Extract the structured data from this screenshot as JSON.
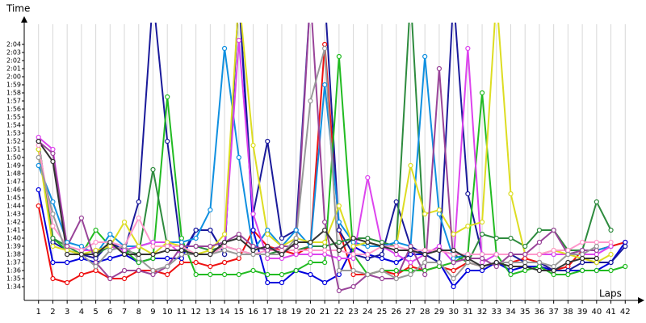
{
  "chart_data": {
    "type": "line",
    "y_label": "Time",
    "x_label": "Laps",
    "x": [
      1,
      2,
      3,
      4,
      5,
      6,
      7,
      8,
      9,
      10,
      11,
      12,
      13,
      14,
      15,
      16,
      17,
      18,
      19,
      20,
      21,
      22,
      23,
      24,
      25,
      26,
      27,
      28,
      29,
      30,
      31,
      32,
      33,
      34,
      35,
      36,
      37,
      38,
      39,
      40,
      41,
      42
    ],
    "xlim": [
      0,
      43
    ],
    "xticks": [
      1,
      2,
      3,
      4,
      5,
      6,
      7,
      8,
      9,
      10,
      11,
      12,
      13,
      14,
      15,
      16,
      17,
      18,
      19,
      20,
      21,
      22,
      23,
      24,
      25,
      26,
      27,
      28,
      29,
      30,
      31,
      32,
      33,
      34,
      35,
      36,
      37,
      38,
      39,
      40,
      41,
      42
    ],
    "ylim": [
      92.3,
      126.5
    ],
    "yticks": [
      {
        "value": 94,
        "label": "1:34"
      },
      {
        "value": 95,
        "label": "1:35"
      },
      {
        "value": 96,
        "label": "1:36"
      },
      {
        "value": 97,
        "label": "1:37"
      },
      {
        "value": 98,
        "label": "1:38"
      },
      {
        "value": 99,
        "label": "1:39"
      },
      {
        "value": 100,
        "label": "1:40"
      },
      {
        "value": 101,
        "label": "1:41"
      },
      {
        "value": 102,
        "label": "1:42"
      },
      {
        "value": 103,
        "label": "1:43"
      },
      {
        "value": 104,
        "label": "1:44"
      },
      {
        "value": 105,
        "label": "1:45"
      },
      {
        "value": 106,
        "label": "1:46"
      },
      {
        "value": 107,
        "label": "1:47"
      },
      {
        "value": 108,
        "label": "1:48"
      },
      {
        "value": 109,
        "label": "1:49"
      },
      {
        "value": 110,
        "label": "1:50"
      },
      {
        "value": 111,
        "label": "1:51"
      },
      {
        "value": 112,
        "label": "1:52"
      },
      {
        "value": 113,
        "label": "1:53"
      },
      {
        "value": 114,
        "label": "1:54"
      },
      {
        "value": 115,
        "label": "1:55"
      },
      {
        "value": 116,
        "label": "1:56"
      },
      {
        "value": 117,
        "label": "1:57"
      },
      {
        "value": 118,
        "label": "1:58"
      },
      {
        "value": 119,
        "label": "1:59"
      },
      {
        "value": 120,
        "label": "2:00"
      },
      {
        "value": 121,
        "label": "2:01"
      },
      {
        "value": 122,
        "label": "2:02"
      },
      {
        "value": 123,
        "label": "2:03"
      },
      {
        "value": 124,
        "label": "2:04"
      }
    ],
    "grid": true,
    "series": [
      {
        "color": "#ee1111",
        "values": [
          104,
          95,
          94.5,
          95.5,
          96,
          95,
          95,
          96,
          96,
          95.5,
          97,
          97,
          96.5,
          97,
          97.5,
          101,
          99,
          98.5,
          98,
          99,
          124,
          101,
          95.5,
          95.5,
          96,
          95.5,
          96.5,
          96,
          96.5,
          96,
          97,
          96.5,
          97,
          97,
          97.5,
          97,
          96,
          96.5,
          98.5,
          98.5,
          99,
          99.5
        ]
      },
      {
        "color": "#0000dd",
        "values": [
          106,
          97,
          97,
          97.5,
          97,
          97.5,
          98,
          97,
          97.5,
          97.5,
          97.5,
          101,
          101,
          98,
          130,
          101,
          94.5,
          94.5,
          96,
          95.5,
          94.5,
          95.5,
          99,
          98,
          97.5,
          97,
          98,
          98,
          97,
          94,
          96,
          96,
          97,
          96,
          96.5,
          96.5,
          96,
          96,
          96,
          96,
          97,
          99.5
        ]
      },
      {
        "color": "#1a1a9a",
        "values": [
          112,
          99.5,
          98.5,
          98,
          97.5,
          99.5,
          98.5,
          104.5,
          130,
          112,
          98,
          101,
          101,
          98,
          130,
          103,
          112,
          100,
          101,
          130,
          130,
          101,
          98,
          97.5,
          98,
          104.5,
          99,
          98,
          97,
          130,
          105.5,
          98,
          98,
          98,
          97,
          97,
          96,
          96,
          97,
          97,
          97,
          99
        ]
      },
      {
        "color": "#22bb22",
        "values": [
          111,
          100,
          98.5,
          98,
          101,
          99,
          98.5,
          97,
          97.5,
          117.5,
          100,
          95.5,
          95.5,
          95.5,
          95.5,
          96,
          95.5,
          95.5,
          96,
          97,
          97,
          122.5,
          98,
          95.5,
          96,
          96,
          96,
          96,
          96.5,
          97,
          98,
          118,
          98,
          95.5,
          96,
          96.5,
          95.5,
          95.5,
          96,
          96,
          96,
          96.5
        ]
      },
      {
        "color": "#2e8b3e",
        "values": [
          112,
          100,
          99,
          98,
          98,
          99,
          98.5,
          98,
          108.5,
          99,
          99,
          99,
          98.5,
          99,
          98.5,
          98,
          98,
          98.5,
          98.5,
          99,
          99,
          99.5,
          100,
          100,
          99.5,
          99,
          130,
          98.5,
          98.5,
          98,
          97,
          100.5,
          100,
          100,
          99,
          101,
          101,
          98.5,
          98.5,
          104.5,
          101,
          null
        ]
      },
      {
        "color": "#1090e0",
        "values": [
          109,
          104.5,
          99.5,
          99,
          98,
          100.5,
          99,
          99,
          99.5,
          99.5,
          99.5,
          100,
          103.5,
          123.5,
          110,
          98.5,
          101,
          99,
          101,
          99,
          119,
          102,
          99.5,
          99,
          99,
          99.5,
          99,
          122.5,
          103,
          97.5,
          98,
          98,
          98,
          98,
          98,
          98,
          98,
          98,
          98.5,
          98.5,
          99,
          null
        ]
      },
      {
        "color": "#dd44ee",
        "values": [
          112.5,
          111,
          99,
          98.5,
          98.5,
          99,
          98.5,
          99,
          99.5,
          99.5,
          98,
          98,
          98,
          99,
          124.5,
          103,
          97.5,
          97.5,
          98,
          98,
          98,
          97.5,
          97.5,
          107.5,
          99,
          98,
          97,
          98,
          99,
          97,
          123.5,
          97,
          98,
          98,
          98,
          98,
          98,
          98,
          98,
          98,
          99,
          null
        ]
      },
      {
        "color": "#dddd22",
        "values": [
          111,
          99,
          98.5,
          98,
          98.5,
          99,
          102,
          99,
          98,
          99.5,
          99,
          98,
          98.5,
          100.5,
          130,
          111.5,
          100.5,
          99,
          100,
          99.5,
          99.5,
          104,
          99,
          99.5,
          99,
          99,
          109,
          103,
          103.5,
          100.5,
          101.5,
          102,
          130,
          105.5,
          98,
          98,
          98.5,
          98,
          97.5,
          97,
          98,
          null
        ]
      },
      {
        "color": "#ff99cc",
        "values": [
          111.5,
          101.5,
          99,
          98.5,
          99.5,
          99.5,
          99,
          102.5,
          99,
          99,
          99,
          98,
          98,
          99,
          98.5,
          98,
          98.5,
          98.5,
          98.5,
          98.5,
          98.5,
          98.5,
          98,
          98,
          99,
          99,
          98.5,
          98.5,
          98.5,
          98,
          98,
          98,
          98,
          98,
          98,
          98,
          98.5,
          98.5,
          99.5,
          99.5,
          99.5,
          null
        ]
      },
      {
        "color": "#994499",
        "values": [
          112,
          110.5,
          99,
          102.5,
          97,
          95,
          96,
          96,
          95.5,
          96.5,
          99,
          99,
          99,
          99.5,
          100.5,
          99,
          98.5,
          99,
          99,
          130,
          102,
          93.5,
          94,
          95.5,
          95,
          95,
          99,
          95.5,
          121,
          97,
          97.5,
          97.5,
          96.5,
          98,
          98,
          99.5,
          101,
          98,
          98.5,
          98.5,
          null,
          null
        ]
      },
      {
        "color": "#999999",
        "values": [
          110,
          103,
          98,
          98,
          96.5,
          98.5,
          99,
          97.5,
          96,
          96.5,
          98,
          98,
          98,
          98.5,
          98,
          98,
          98,
          98,
          100,
          117,
          123.5,
          96,
          96,
          95.5,
          96,
          95,
          95.5,
          97,
          97,
          95,
          97,
          96.5,
          97,
          97,
          97,
          97,
          96.5,
          98,
          98,
          99,
          null,
          null
        ]
      },
      {
        "color": "#333333",
        "values": [
          112,
          109.5,
          98,
          98,
          98,
          99.5,
          98,
          98,
          98,
          98.5,
          98.5,
          98,
          98,
          99.5,
          100,
          98.5,
          99,
          98,
          99.5,
          99.5,
          101,
          98.5,
          100,
          99.5,
          99,
          98.5,
          98.5,
          98,
          98.5,
          98.5,
          97.5,
          96.5,
          97,
          96.5,
          96.5,
          96,
          96,
          97,
          97.5,
          97.5,
          null,
          null
        ]
      }
    ]
  }
}
